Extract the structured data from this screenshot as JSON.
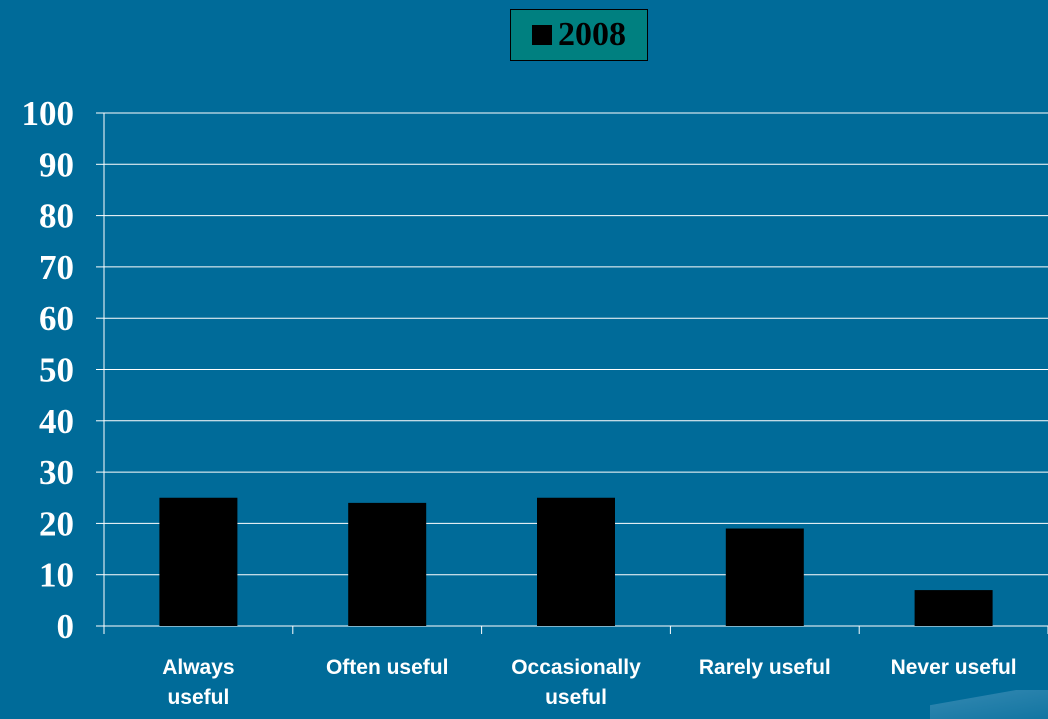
{
  "chart_data": {
    "type": "bar",
    "categories": [
      [
        "Always",
        "useful"
      ],
      [
        "Often useful"
      ],
      [
        "Occasionally",
        "useful"
      ],
      [
        "Rarely useful"
      ],
      [
        "Never useful"
      ]
    ],
    "series": [
      {
        "name": "2008",
        "values": [
          25,
          24,
          25,
          19,
          7
        ]
      }
    ],
    "ylim": [
      0,
      100
    ],
    "yticks": [
      0,
      10,
      20,
      30,
      40,
      50,
      60,
      70,
      80,
      90,
      100
    ],
    "grid": true,
    "legend_position": "top-center",
    "title": "",
    "xlabel": "",
    "ylabel": ""
  },
  "colors": {
    "background": "#006b99",
    "bar": "#000000",
    "grid": "#ffffff",
    "legend_bg": "#008080",
    "text": "#ffffff"
  }
}
